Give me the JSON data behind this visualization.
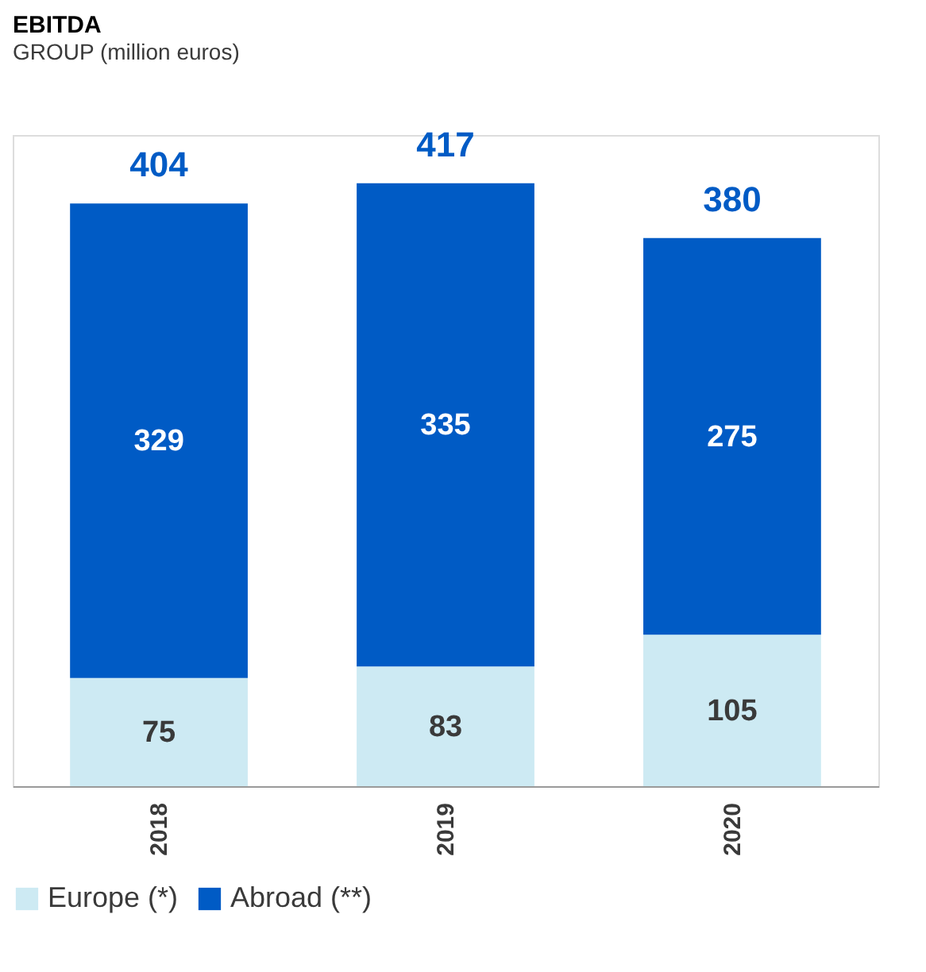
{
  "chart_data": {
    "type": "bar",
    "title": "EBITDA",
    "subtitle": "GROUP (million euros)",
    "categories": [
      "2018",
      "2019",
      "2020"
    ],
    "stacked": true,
    "data_labels": true,
    "legend": "bottom",
    "grid": false,
    "series": [
      {
        "name": "Europe (*)",
        "color": "#cdeaf3",
        "values": [
          75,
          83,
          105
        ]
      },
      {
        "name": "Abroad (**)",
        "color": "#005bc5",
        "values": [
          329,
          335,
          275
        ]
      }
    ],
    "totals": [
      "404",
      "417",
      "380"
    ]
  }
}
